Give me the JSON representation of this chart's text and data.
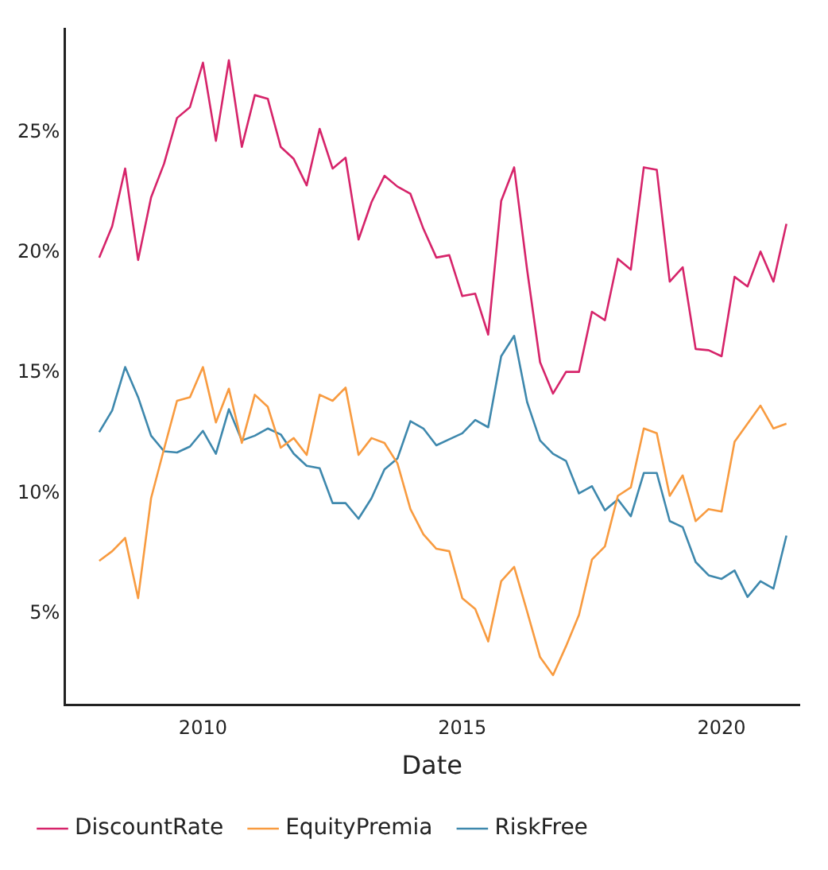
{
  "chart_data": {
    "type": "line",
    "xlabel": "Date",
    "x": [
      "2008-01",
      "2008-04",
      "2008-07",
      "2008-10",
      "2009-01",
      "2009-04",
      "2009-07",
      "2009-10",
      "2010-01",
      "2010-04",
      "2010-07",
      "2010-10",
      "2011-01",
      "2011-04",
      "2011-07",
      "2011-10",
      "2012-01",
      "2012-04",
      "2012-07",
      "2012-10",
      "2013-01",
      "2013-04",
      "2013-07",
      "2013-10",
      "2014-01",
      "2014-04",
      "2014-07",
      "2014-10",
      "2015-01",
      "2015-04",
      "2015-07",
      "2015-10",
      "2016-01",
      "2016-04",
      "2016-07",
      "2016-10",
      "2017-01",
      "2017-04",
      "2017-07",
      "2017-10",
      "2018-01",
      "2018-04",
      "2018-07",
      "2018-10",
      "2019-01",
      "2019-04",
      "2019-07",
      "2019-10",
      "2020-01",
      "2020-04",
      "2020-07",
      "2020-10",
      "2021-01",
      "2021-04"
    ],
    "series": [
      {
        "name": "DiscountRate",
        "color": "#d6246a",
        "values": [
          19.8,
          21.1,
          23.5,
          19.7,
          22.3,
          23.7,
          25.6,
          26.05,
          27.9,
          24.65,
          28.0,
          24.4,
          26.55,
          26.4,
          24.4,
          23.9,
          22.8,
          25.15,
          23.5,
          23.95,
          20.55,
          22.1,
          23.2,
          22.75,
          22.45,
          21.0,
          19.8,
          19.9,
          18.2,
          18.3,
          16.6,
          22.15,
          23.55,
          19.3,
          15.45,
          14.15,
          15.05,
          15.05,
          17.55,
          17.2,
          19.75,
          19.3,
          23.55,
          23.45,
          18.8,
          19.4,
          16.0,
          15.95,
          15.7,
          19.0,
          18.6,
          20.05,
          18.8,
          21.2
        ]
      },
      {
        "name": "EquityPremia",
        "color": "#f89b40",
        "values": [
          7.2,
          7.6,
          8.15,
          5.65,
          9.8,
          11.85,
          13.85,
          14.0,
          15.25,
          12.95,
          14.35,
          12.1,
          14.1,
          13.6,
          11.9,
          12.3,
          11.6,
          14.1,
          13.85,
          14.4,
          11.6,
          12.3,
          12.1,
          11.25,
          9.35,
          8.3,
          7.7,
          7.6,
          5.65,
          5.2,
          3.85,
          6.35,
          6.95,
          5.1,
          3.2,
          2.45,
          3.65,
          4.95,
          7.25,
          7.8,
          9.9,
          10.25,
          12.7,
          12.5,
          9.9,
          10.75,
          8.85,
          9.35,
          9.25,
          12.15,
          12.9,
          13.65,
          12.7,
          12.9
        ]
      },
      {
        "name": "RiskFree",
        "color": "#3e88ad",
        "values": [
          12.55,
          13.45,
          15.25,
          14.0,
          12.4,
          11.75,
          11.7,
          11.95,
          12.6,
          11.65,
          13.5,
          12.2,
          12.4,
          12.7,
          12.45,
          11.65,
          11.15,
          11.05,
          9.6,
          9.6,
          8.95,
          9.8,
          11.0,
          11.45,
          13.0,
          12.7,
          12.0,
          12.25,
          12.5,
          13.05,
          12.75,
          15.7,
          16.55,
          13.8,
          12.2,
          11.65,
          11.35,
          10.0,
          10.3,
          9.3,
          9.75,
          9.05,
          10.85,
          10.85,
          8.85,
          8.6,
          7.15,
          6.6,
          6.45,
          6.8,
          5.7,
          6.35,
          6.05,
          8.25
        ]
      }
    ],
    "xlim": [
      "2007-05",
      "2021-07"
    ],
    "xticks": [
      "2010",
      "2015",
      "2020"
    ],
    "ylim": [
      1.2,
      29.3
    ],
    "yticks": [
      {
        "value": 5,
        "label": "5%"
      },
      {
        "value": 10,
        "label": "10%"
      },
      {
        "value": 15,
        "label": "15%"
      },
      {
        "value": 20,
        "label": "20%"
      },
      {
        "value": 25,
        "label": "25%"
      }
    ],
    "grid": false,
    "legend": "bottom",
    "marker": "none",
    "line_style": "solid"
  }
}
